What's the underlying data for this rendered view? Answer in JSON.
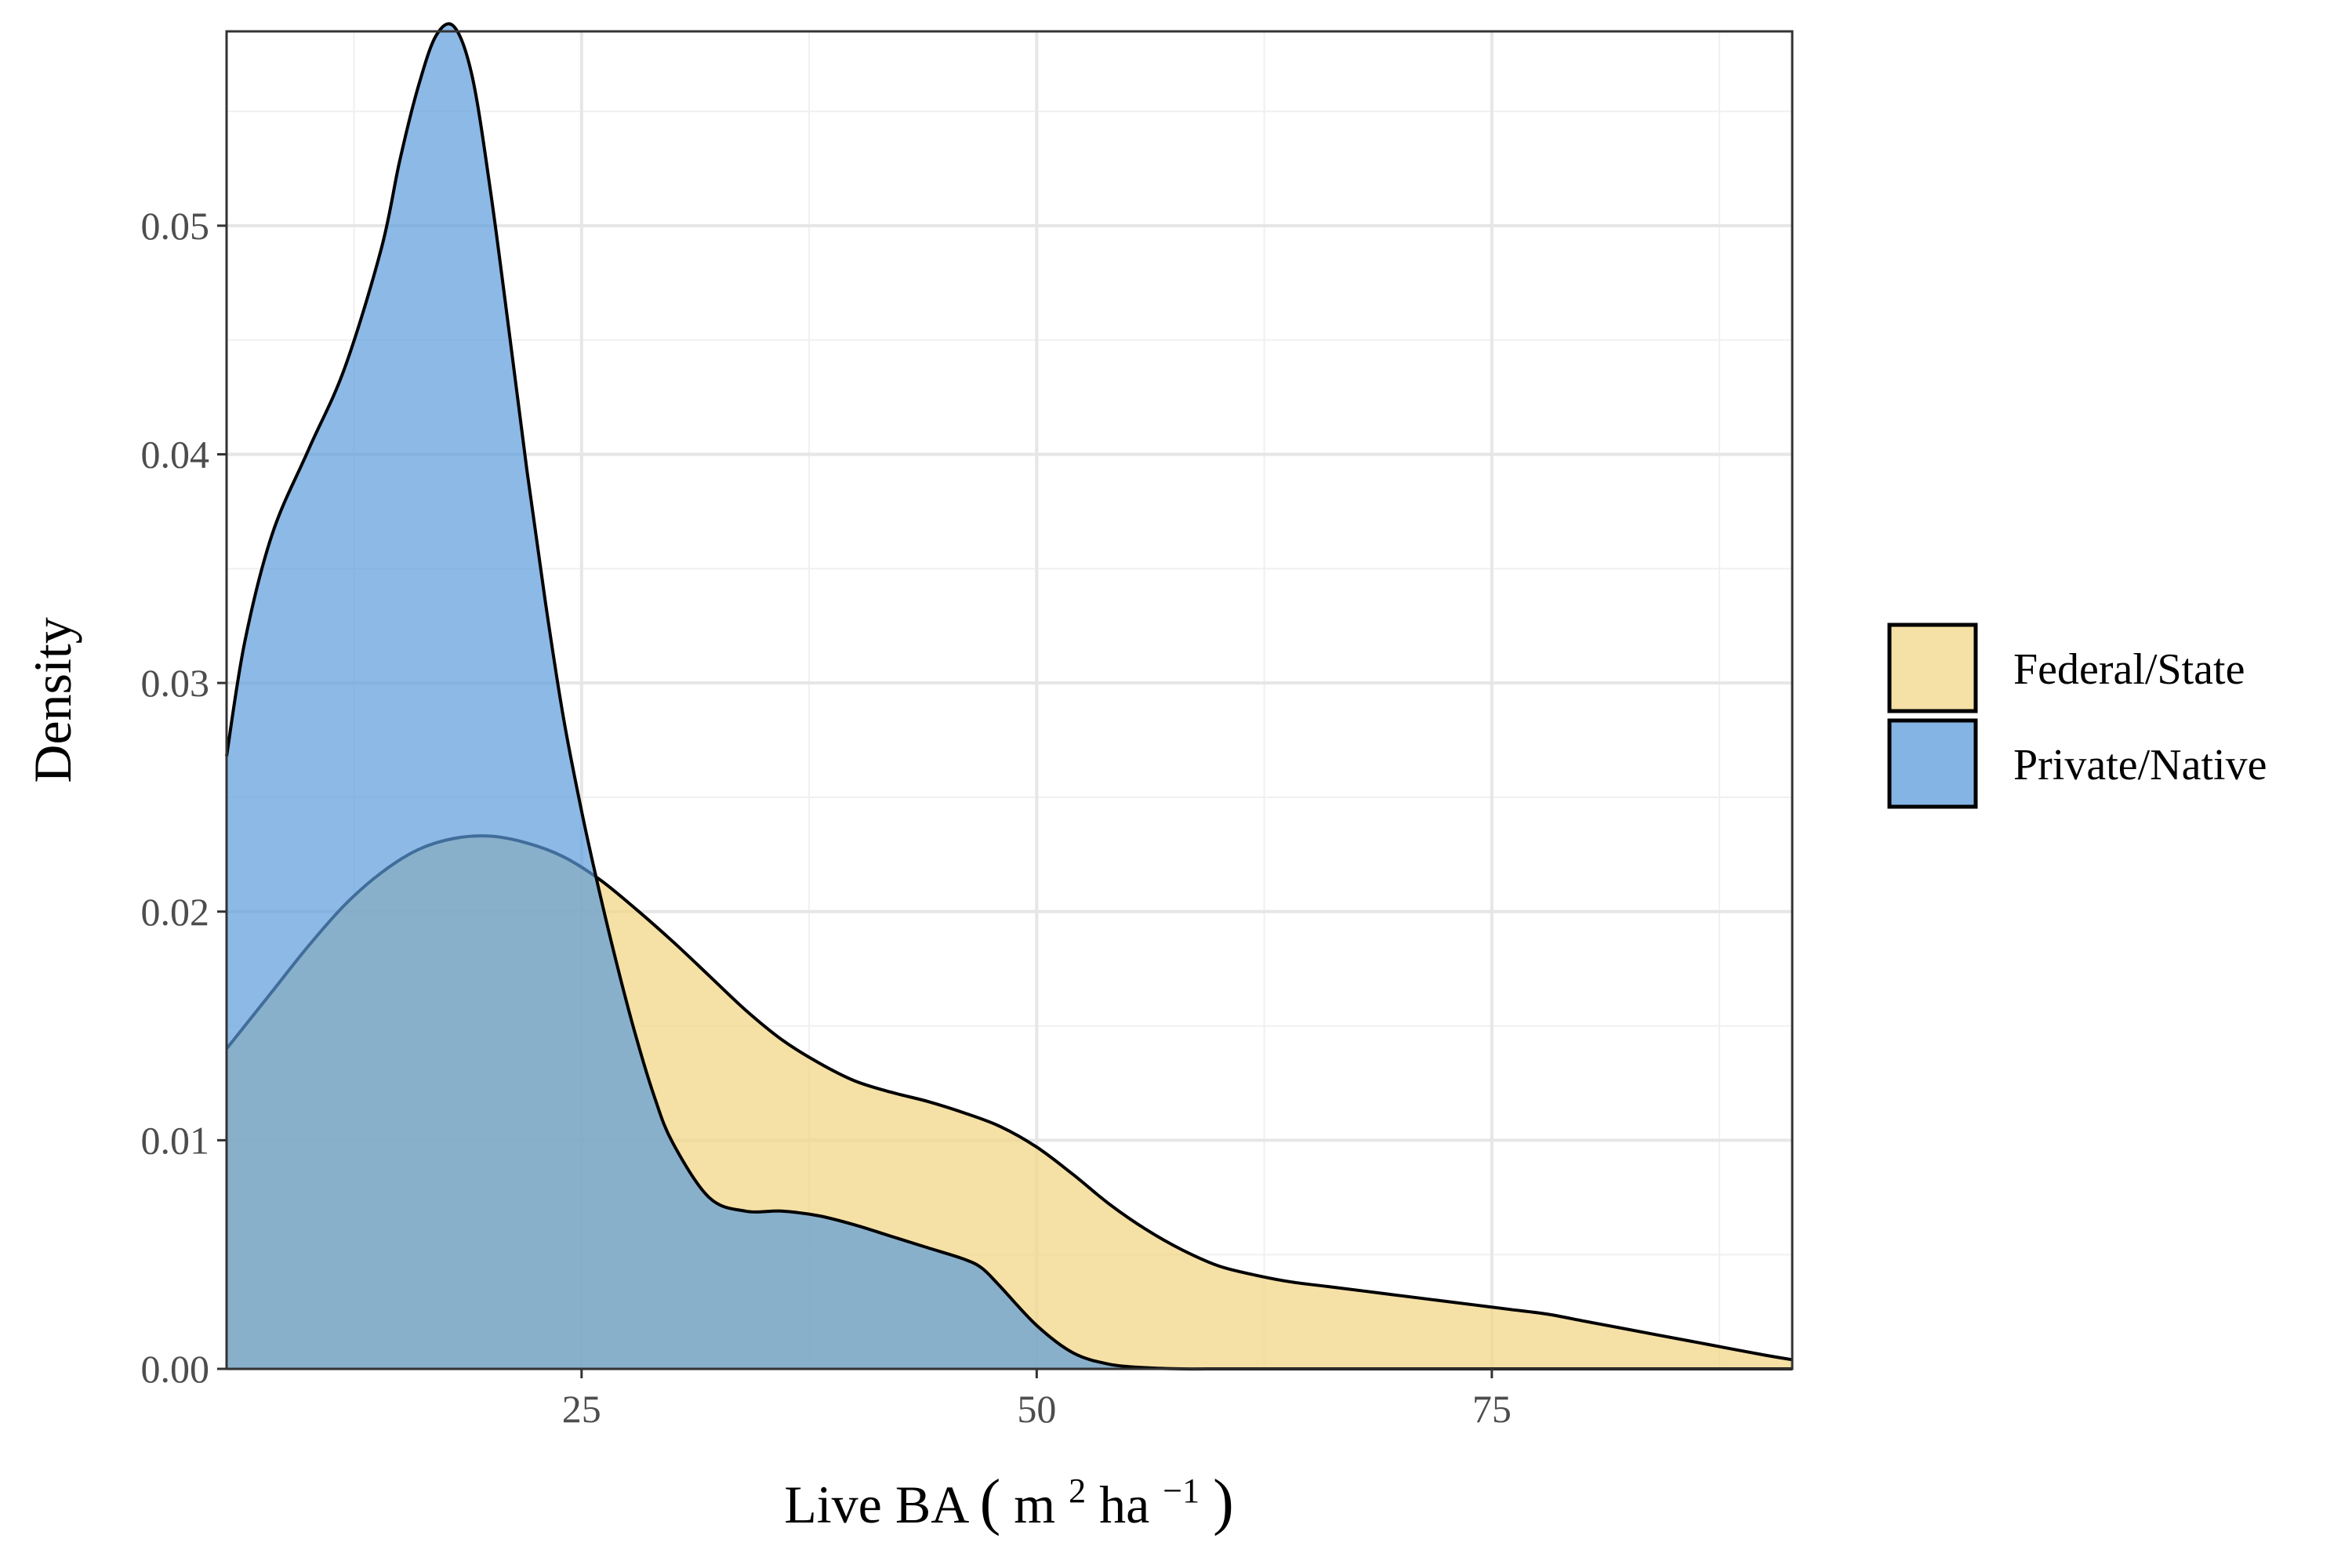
{
  "chart_data": {
    "type": "area",
    "xlabel": "Live BA (m² ha⁻¹)",
    "xlabel_parts": {
      "prefix": "Live BA ",
      "open": "(",
      "m": "m",
      "m_exp": "2",
      "mid": " ha",
      "ha_exp": "−1",
      "close": ")"
    },
    "ylabel": "Density",
    "xlim": [
      5.5,
      91.5
    ],
    "ylim": [
      0,
      0.0585
    ],
    "x_ticks": [
      25,
      50,
      75
    ],
    "x_tick_labels": [
      "25",
      "50",
      "75"
    ],
    "x_minor_ticks": [
      12.5,
      37.5,
      62.5,
      87.5
    ],
    "y_ticks": [
      0,
      0.01,
      0.02,
      0.03,
      0.04,
      0.05
    ],
    "y_tick_labels": [
      "0.00",
      "0.01",
      "0.02",
      "0.03",
      "0.04",
      "0.05"
    ],
    "y_minor_ticks": [
      0.005,
      0.015,
      0.025,
      0.035,
      0.045,
      0.055
    ],
    "grid": true,
    "legend_position": "right",
    "series": [
      {
        "name": "Federal/State",
        "color": "#F2D587",
        "x": [
          5.5,
          8,
          10,
          12,
          14,
          16,
          18,
          20,
          22,
          24,
          26,
          28,
          30,
          32,
          34,
          36,
          38,
          40,
          42,
          44,
          46,
          48,
          50,
          52,
          54,
          56,
          58,
          60,
          62,
          64,
          66,
          68,
          70,
          72,
          74,
          76,
          78,
          80,
          82,
          84,
          86,
          88,
          90,
          91.5
        ],
        "y": [
          0.014,
          0.0165,
          0.0185,
          0.0203,
          0.0217,
          0.0227,
          0.0232,
          0.0233,
          0.023,
          0.0224,
          0.0214,
          0.0201,
          0.0187,
          0.0172,
          0.0157,
          0.0144,
          0.0134,
          0.0126,
          0.0121,
          0.0117,
          0.0112,
          0.0106,
          0.0097,
          0.0085,
          0.0072,
          0.0061,
          0.0052,
          0.0045,
          0.0041,
          0.0038,
          0.0036,
          0.0034,
          0.0032,
          0.003,
          0.0028,
          0.0026,
          0.0024,
          0.0021,
          0.0018,
          0.0015,
          0.0012,
          0.0009,
          0.0006,
          0.0004
        ]
      },
      {
        "name": "Private/Native",
        "color": "#5B9BDB",
        "x": [
          5.5,
          6.5,
          8,
          10,
          12,
          14,
          15,
          16,
          17,
          18,
          19,
          20,
          21,
          22,
          23,
          24,
          25,
          26,
          27,
          28,
          29,
          30,
          32,
          34,
          36,
          38,
          40,
          42,
          44,
          46,
          47,
          48,
          50,
          52,
          54,
          56,
          58,
          60,
          62,
          65,
          70,
          80,
          91.5
        ],
        "y": [
          0.0268,
          0.0318,
          0.0365,
          0.0402,
          0.0438,
          0.049,
          0.0528,
          0.056,
          0.0583,
          0.0587,
          0.0565,
          0.0515,
          0.0455,
          0.0393,
          0.0336,
          0.0285,
          0.0244,
          0.0208,
          0.0175,
          0.0145,
          0.0119,
          0.0099,
          0.0075,
          0.0069,
          0.0069,
          0.0067,
          0.0063,
          0.0058,
          0.0053,
          0.0048,
          0.0044,
          0.0036,
          0.0019,
          0.0007,
          0.0002,
          5e-05,
          0,
          0,
          0,
          0,
          0,
          0,
          0
        ]
      }
    ]
  }
}
